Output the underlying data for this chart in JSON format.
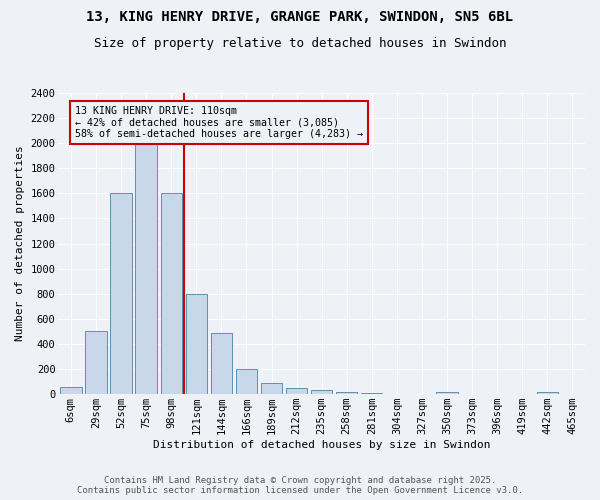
{
  "title_line1": "13, KING HENRY DRIVE, GRANGE PARK, SWINDON, SN5 6BL",
  "title_line2": "Size of property relative to detached houses in Swindon",
  "xlabel": "Distribution of detached houses by size in Swindon",
  "ylabel": "Number of detached properties",
  "categories": [
    "6sqm",
    "29sqm",
    "52sqm",
    "75sqm",
    "98sqm",
    "121sqm",
    "144sqm",
    "166sqm",
    "189sqm",
    "212sqm",
    "235sqm",
    "258sqm",
    "281sqm",
    "304sqm",
    "327sqm",
    "350sqm",
    "373sqm",
    "396sqm",
    "419sqm",
    "442sqm",
    "465sqm"
  ],
  "values": [
    60,
    500,
    1600,
    2000,
    1600,
    800,
    490,
    200,
    90,
    50,
    30,
    15,
    10,
    0,
    0,
    15,
    0,
    0,
    0,
    20,
    0
  ],
  "bar_color": "#c8d8ea",
  "bar_edge_color": "#6090b0",
  "vline_color": "#cc0000",
  "vline_x_index": 4.52,
  "annotation_title": "13 KING HENRY DRIVE: 110sqm",
  "annotation_line2": "← 42% of detached houses are smaller (3,085)",
  "annotation_line3": "58% of semi-detached houses are larger (4,283) →",
  "annotation_box_color": "#cc0000",
  "ylim": [
    0,
    2400
  ],
  "yticks": [
    0,
    200,
    400,
    600,
    800,
    1000,
    1200,
    1400,
    1600,
    1800,
    2000,
    2200,
    2400
  ],
  "footer_line1": "Contains HM Land Registry data © Crown copyright and database right 2025.",
  "footer_line2": "Contains public sector information licensed under the Open Government Licence v3.0.",
  "bg_color": "#eef2f7",
  "grid_color": "#ffffff",
  "title_fontsize": 10,
  "subtitle_fontsize": 9,
  "axis_label_fontsize": 8,
  "tick_fontsize": 7.5,
  "footer_fontsize": 6.5
}
